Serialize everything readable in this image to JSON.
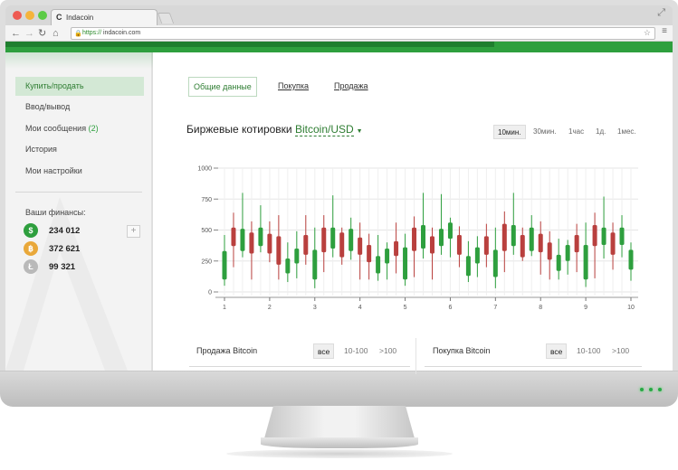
{
  "browser": {
    "tab_title": "Indacoin",
    "tab_logo": "C",
    "url_protocol": "https://",
    "url_domain": "indacoin.com",
    "icons": [
      "back-arrow-icon",
      "forward-arrow-icon",
      "reload-icon",
      "home-icon",
      "lock-icon",
      "star-icon",
      "menu-icon",
      "fullscreen-icon"
    ]
  },
  "sidebar": {
    "items": [
      {
        "label": "Купить/продать",
        "active": true
      },
      {
        "label": "Ввод/вывод",
        "active": false
      },
      {
        "label": "Мои сообщения",
        "badge": "(2)",
        "active": false
      },
      {
        "label": "История",
        "active": false
      },
      {
        "label": "Мои настройки",
        "active": false
      }
    ],
    "finances_title": "Ваши финансы:",
    "balances": [
      {
        "icon": "dollar-coin-icon",
        "glyph": "$",
        "amount": "234 012",
        "color": "#2e9f3e"
      },
      {
        "icon": "bitcoin-coin-icon",
        "glyph": "฿",
        "amount": "372 621",
        "color": "#e9a83a"
      },
      {
        "icon": "litecoin-coin-icon",
        "glyph": "Ł",
        "amount": "99 321",
        "color": "#b9b9b9"
      }
    ],
    "add_label": "+"
  },
  "main": {
    "tabs": [
      {
        "label": "Общие данные",
        "selected": true
      },
      {
        "label": "Покупка",
        "selected": false
      },
      {
        "label": "Продажа",
        "selected": false
      }
    ],
    "quotes_title": "Биржевые котировки",
    "pair_label": "Bitcoin/USD",
    "timeframes": [
      {
        "label": "10мин.",
        "selected": true
      },
      {
        "label": "30мин.",
        "selected": false
      },
      {
        "label": "1час",
        "selected": false
      },
      {
        "label": "1д.",
        "selected": false
      },
      {
        "label": "1мес.",
        "selected": false
      }
    ]
  },
  "orders": {
    "sell": {
      "title": "Продажа Bitcoin",
      "filters": [
        {
          "label": "все",
          "selected": true
        },
        {
          "label": "10-100",
          "selected": false
        },
        {
          "label": ">100",
          "selected": false
        }
      ]
    },
    "buy": {
      "title": "Покупка Bitcoin",
      "filters": [
        {
          "label": "все",
          "selected": true
        },
        {
          "label": "10-100",
          "selected": false
        },
        {
          "label": ">100",
          "selected": false
        }
      ]
    }
  },
  "colors": {
    "accent": "#2e9f3e",
    "up": "#2e9f3e",
    "down": "#b9403e"
  },
  "chart_data": {
    "type": "candlestick",
    "ylim": [
      0,
      1000
    ],
    "yticks": [
      0,
      250,
      500,
      750,
      1000
    ],
    "xlim": [
      1,
      10
    ],
    "xticks": [
      1,
      2,
      3,
      4,
      5,
      6,
      7,
      8,
      9,
      10
    ],
    "grid": true,
    "candles": [
      {
        "x": 1.0,
        "open": 100,
        "close": 330,
        "low": 50,
        "high": 460
      },
      {
        "x": 1.2,
        "open": 520,
        "close": 370,
        "low": 200,
        "high": 640
      },
      {
        "x": 1.4,
        "open": 330,
        "close": 510,
        "low": 280,
        "high": 800
      },
      {
        "x": 1.6,
        "open": 480,
        "close": 310,
        "low": 100,
        "high": 570
      },
      {
        "x": 1.8,
        "open": 370,
        "close": 520,
        "low": 320,
        "high": 700
      },
      {
        "x": 2.0,
        "open": 470,
        "close": 310,
        "low": 240,
        "high": 570
      },
      {
        "x": 2.2,
        "open": 450,
        "close": 220,
        "low": 100,
        "high": 620
      },
      {
        "x": 2.4,
        "open": 150,
        "close": 270,
        "low": 80,
        "high": 400
      },
      {
        "x": 2.6,
        "open": 230,
        "close": 350,
        "low": 110,
        "high": 490
      },
      {
        "x": 2.8,
        "open": 460,
        "close": 300,
        "low": 220,
        "high": 620
      },
      {
        "x": 3.0,
        "open": 100,
        "close": 340,
        "low": 30,
        "high": 520
      },
      {
        "x": 3.2,
        "open": 520,
        "close": 320,
        "low": 160,
        "high": 620
      },
      {
        "x": 3.4,
        "open": 350,
        "close": 520,
        "low": 280,
        "high": 780
      },
      {
        "x": 3.6,
        "open": 480,
        "close": 280,
        "low": 220,
        "high": 520
      },
      {
        "x": 3.8,
        "open": 330,
        "close": 510,
        "low": 260,
        "high": 600
      },
      {
        "x": 4.0,
        "open": 440,
        "close": 300,
        "low": 100,
        "high": 560
      },
      {
        "x": 4.2,
        "open": 380,
        "close": 240,
        "low": 100,
        "high": 470
      },
      {
        "x": 4.4,
        "open": 150,
        "close": 290,
        "low": 90,
        "high": 460
      },
      {
        "x": 4.6,
        "open": 230,
        "close": 350,
        "low": 100,
        "high": 400
      },
      {
        "x": 4.8,
        "open": 410,
        "close": 290,
        "low": 150,
        "high": 560
      },
      {
        "x": 5.0,
        "open": 100,
        "close": 360,
        "low": 50,
        "high": 470
      },
      {
        "x": 5.2,
        "open": 520,
        "close": 330,
        "low": 120,
        "high": 610
      },
      {
        "x": 5.4,
        "open": 350,
        "close": 540,
        "low": 270,
        "high": 800
      },
      {
        "x": 5.6,
        "open": 450,
        "close": 310,
        "low": 100,
        "high": 520
      },
      {
        "x": 5.8,
        "open": 370,
        "close": 510,
        "low": 300,
        "high": 790
      },
      {
        "x": 6.0,
        "open": 430,
        "close": 560,
        "low": 280,
        "high": 600
      },
      {
        "x": 6.2,
        "open": 460,
        "close": 300,
        "low": 200,
        "high": 530
      },
      {
        "x": 6.4,
        "open": 130,
        "close": 290,
        "low": 80,
        "high": 410
      },
      {
        "x": 6.6,
        "open": 230,
        "close": 360,
        "low": 120,
        "high": 450
      },
      {
        "x": 6.8,
        "open": 450,
        "close": 300,
        "low": 200,
        "high": 550
      },
      {
        "x": 7.0,
        "open": 120,
        "close": 340,
        "low": 30,
        "high": 520
      },
      {
        "x": 7.2,
        "open": 550,
        "close": 330,
        "low": 160,
        "high": 650
      },
      {
        "x": 7.4,
        "open": 370,
        "close": 540,
        "low": 300,
        "high": 800
      },
      {
        "x": 7.6,
        "open": 460,
        "close": 280,
        "low": 250,
        "high": 520
      },
      {
        "x": 7.8,
        "open": 330,
        "close": 520,
        "low": 290,
        "high": 620
      },
      {
        "x": 8.0,
        "open": 470,
        "close": 320,
        "low": 140,
        "high": 570
      },
      {
        "x": 8.2,
        "open": 400,
        "close": 260,
        "low": 100,
        "high": 490
      },
      {
        "x": 8.4,
        "open": 170,
        "close": 300,
        "low": 100,
        "high": 430
      },
      {
        "x": 8.6,
        "open": 250,
        "close": 380,
        "low": 140,
        "high": 420
      },
      {
        "x": 8.8,
        "open": 460,
        "close": 320,
        "low": 160,
        "high": 550
      },
      {
        "x": 9.0,
        "open": 100,
        "close": 380,
        "low": 40,
        "high": 560
      },
      {
        "x": 9.2,
        "open": 540,
        "close": 370,
        "low": 110,
        "high": 640
      },
      {
        "x": 9.4,
        "open": 380,
        "close": 520,
        "low": 270,
        "high": 770
      },
      {
        "x": 9.6,
        "open": 480,
        "close": 300,
        "low": 180,
        "high": 560
      },
      {
        "x": 9.8,
        "open": 380,
        "close": 520,
        "low": 280,
        "high": 620
      },
      {
        "x": 10.0,
        "open": 180,
        "close": 340,
        "low": 90,
        "high": 400
      }
    ]
  }
}
